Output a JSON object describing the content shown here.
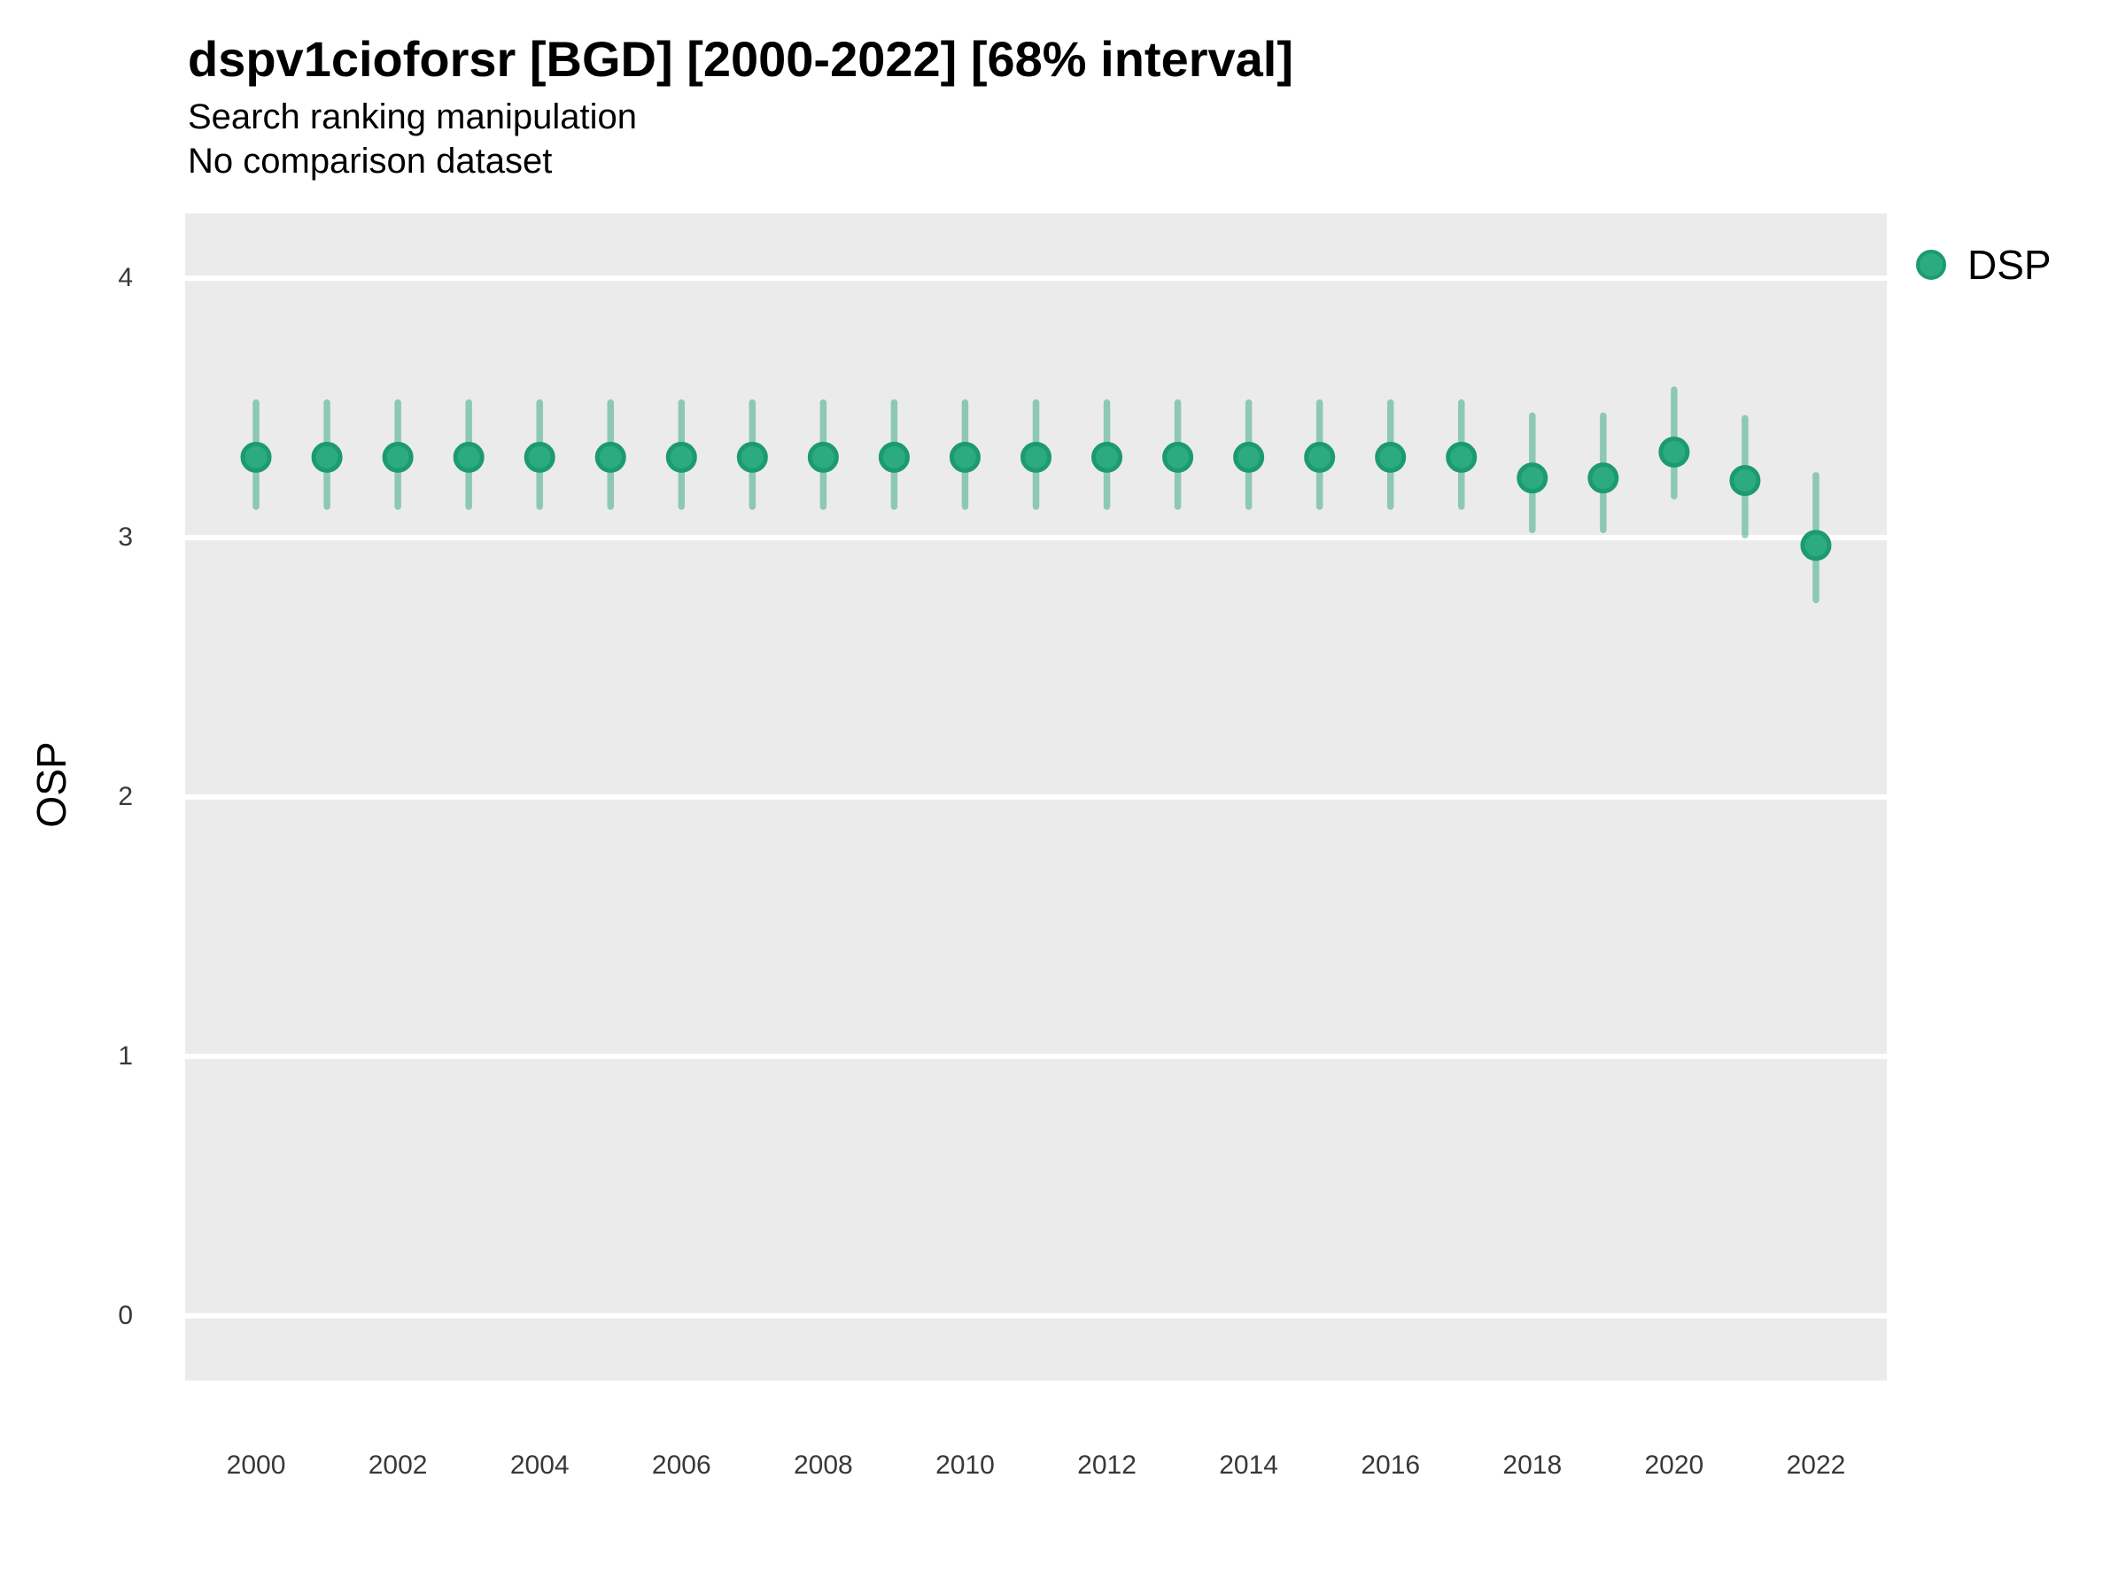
{
  "header": {
    "title": "dspv1cioforsr [BGD] [2000-2022] [68% interval]",
    "subtitle": "Search ranking manipulation",
    "note": "No comparison dataset"
  },
  "legend": {
    "label": "DSP"
  },
  "axes": {
    "y_label": "OSP"
  },
  "colors": {
    "panel_bg": "#EBEBEB",
    "gridline": "#FFFFFF",
    "point_fill": "#2CAA80",
    "point_stroke": "#1C9A70",
    "interval": "rgba(27,158,119,0.45)",
    "tick_text": "#383838",
    "text": "#000000"
  },
  "chart_data": {
    "type": "scatter",
    "title": "dspv1cioforsr [BGD] [2000-2022] [68% interval]",
    "subtitle": "Search ranking manipulation",
    "note": "No comparison dataset",
    "xlabel": "",
    "ylabel": "OSP",
    "xlim": [
      1999,
      2023
    ],
    "ylim": [
      -0.25,
      4.25
    ],
    "grid": "horizontal-major-only",
    "legend_position": "right",
    "y_ticks": [
      0,
      1,
      2,
      3,
      4
    ],
    "x_ticks": [
      2000,
      2002,
      2004,
      2006,
      2008,
      2010,
      2012,
      2014,
      2016,
      2018,
      2020,
      2022
    ],
    "x": [
      2000,
      2001,
      2002,
      2003,
      2004,
      2005,
      2006,
      2007,
      2008,
      2009,
      2010,
      2011,
      2012,
      2013,
      2014,
      2015,
      2016,
      2017,
      2018,
      2019,
      2020,
      2021,
      2022
    ],
    "series": [
      {
        "name": "DSP",
        "interval_level": "68%",
        "values": [
          3.31,
          3.31,
          3.31,
          3.31,
          3.31,
          3.31,
          3.31,
          3.31,
          3.31,
          3.31,
          3.31,
          3.31,
          3.31,
          3.31,
          3.31,
          3.31,
          3.31,
          3.31,
          3.23,
          3.23,
          3.33,
          3.22,
          2.97
        ],
        "lower": [
          3.12,
          3.12,
          3.12,
          3.12,
          3.12,
          3.12,
          3.12,
          3.12,
          3.12,
          3.12,
          3.12,
          3.12,
          3.12,
          3.12,
          3.12,
          3.12,
          3.12,
          3.12,
          3.03,
          3.03,
          3.16,
          3.01,
          2.76
        ],
        "upper": [
          3.52,
          3.52,
          3.52,
          3.52,
          3.52,
          3.52,
          3.52,
          3.52,
          3.52,
          3.52,
          3.52,
          3.52,
          3.52,
          3.52,
          3.52,
          3.52,
          3.52,
          3.52,
          3.47,
          3.47,
          3.57,
          3.46,
          3.24
        ]
      }
    ]
  }
}
